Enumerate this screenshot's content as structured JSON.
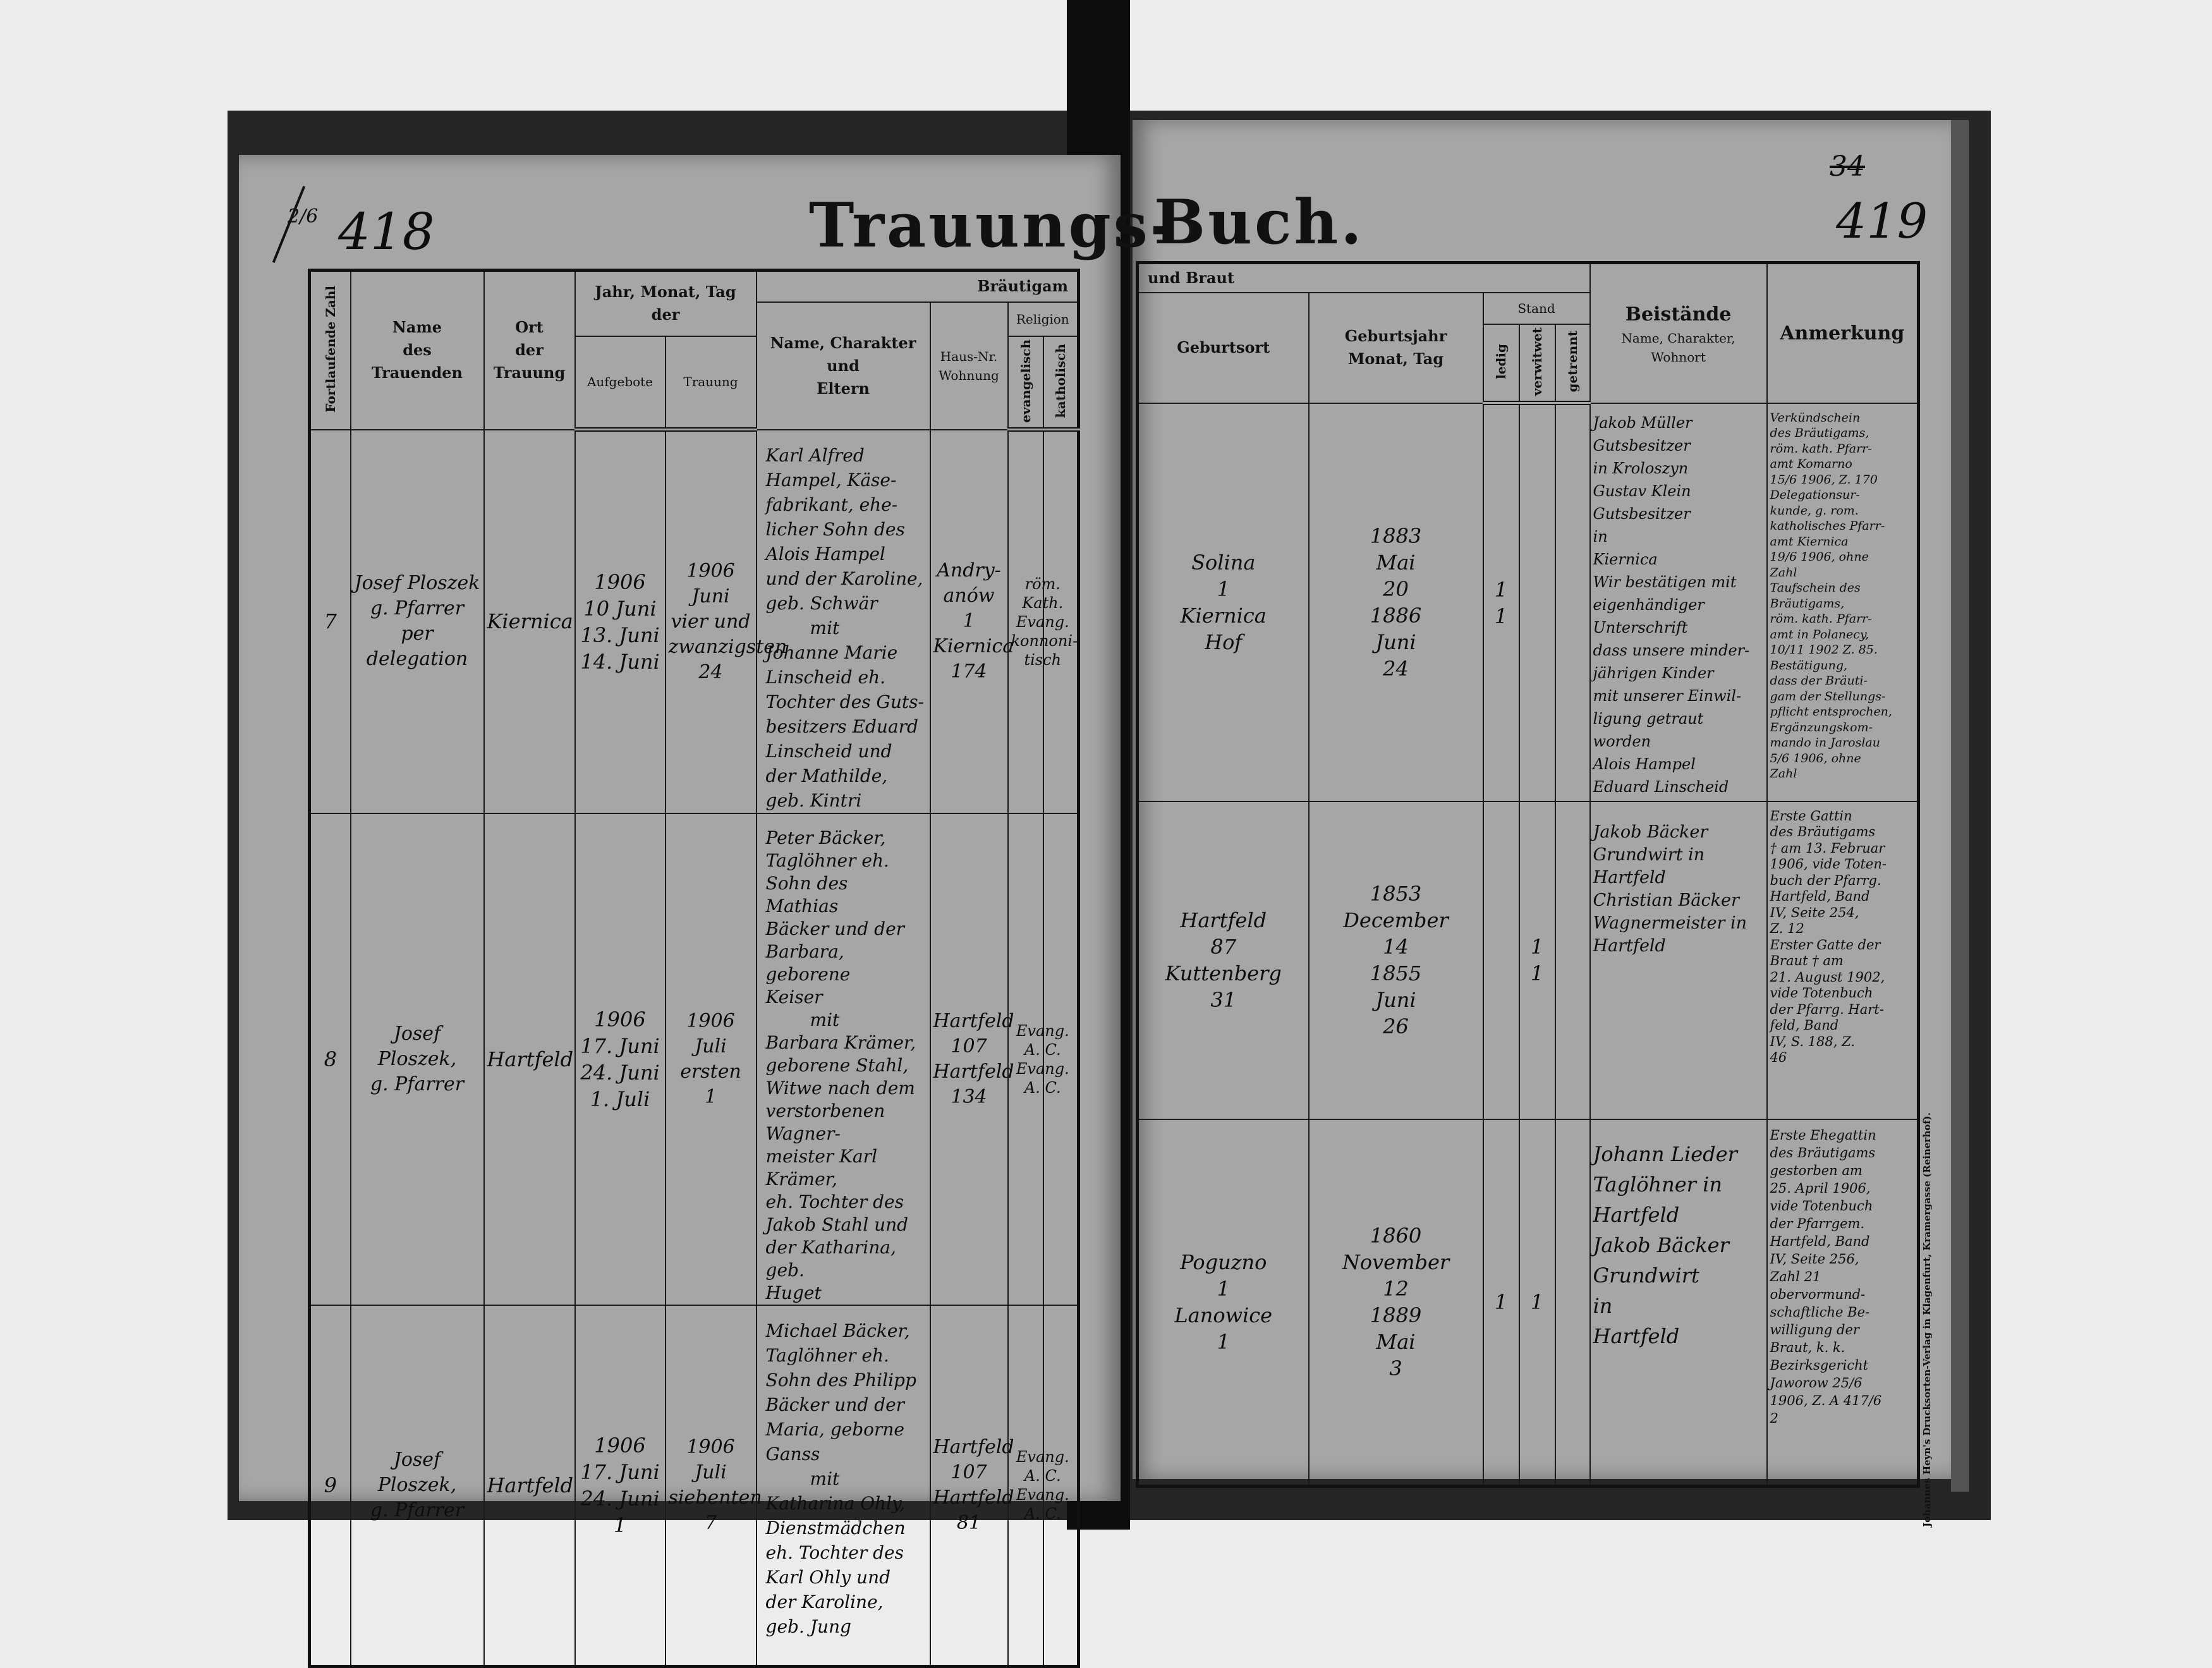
{
  "header": {
    "marginal_left": "2/6",
    "page_left_number": "418",
    "title_left": "Trauungs-",
    "title_right": "Buch.",
    "crossed_number": "34",
    "page_right_number": "419"
  },
  "left_columns": {
    "number": "Fortlaufende Zahl",
    "officiant": "Name\ndes\nTrauenden",
    "place": "Ort\nder\nTrauung",
    "date_group": "Jahr, Monat, Tag\nder",
    "banns": "Aufgebote",
    "wedding": "Trauung",
    "groom_group": "Bräutigam",
    "name_parents": "Name, Charakter\nund\nEltern",
    "house": "Haus-Nr.\nWohnung",
    "religion": "Religion",
    "evangelical": "evangelisch",
    "catholic": "katholisch"
  },
  "right_columns": {
    "bride_group": "und Braut",
    "birthplace": "Geburtsort",
    "birthdate": "Geburtsjahr\nMonat, Tag",
    "status": "Stand",
    "single": "ledig",
    "widowed": "verwitwet",
    "divorced": "getrennt",
    "witnesses": "Beistände",
    "witnesses_sub": "Name, Charakter, Wohnort",
    "remarks": "Anmerkung"
  },
  "entries": [
    {
      "number": "7",
      "officiant": "Josef Ploszek\ng. Pfarrer\nper delegation",
      "place": "Kiernica",
      "banns": "1906\n10 Juni\n13. Juni\n14. Juni",
      "wedding": "1906\nJuni\nvier und\nzwanzigsten\n24",
      "groom": "Karl Alfred\nHampel, Käse-\nfabrikant, ehe-\nlicher Sohn des\nAlois Hampel\nund der Karoline,\ngeb. Schwär",
      "with": "mit",
      "bride": "Johanne Marie\nLinscheid eh.\nTochter des Guts-\nbesitzers Eduard\nLinscheid und\nder Mathilde,\ngeb. Kintri",
      "groom_house": "Andry-\nanów\n1",
      "bride_house": "Kiernica\n174",
      "groom_religion": "röm.\nKath.",
      "bride_religion": "Evang.\nkonnoni-\ntisch",
      "groom_birthplace": "Solina\n1",
      "groom_birthdate": "1883\nMai\n20",
      "groom_stand": {
        "ledig": "1",
        "verwitwet": "",
        "getrennt": ""
      },
      "bride_birthplace": "Kiernica\nHof",
      "bride_birthdate": "1886\nJuni\n24",
      "bride_stand": {
        "ledig": "1",
        "verwitwet": "",
        "getrennt": ""
      },
      "witnesses": "Jakob Müller\nGutsbesitzer\nin Kroloszyn\nGustav Klein\nGutsbesitzer\nin\nKiernica\nWir bestätigen mit\neigenhändiger Unterschrift\ndass unsere minder-\njährigen Kinder\nmit unserer Einwil-\nligung getraut worden\nAlois Hampel\nEduard Linscheid",
      "remarks": "Verkündschein\ndes Bräutigams,\nröm. kath. Pfarr-\namt Komarno\n15/6 1906, Z. 170\nDelegationsur-\nkunde, g. rom.\nkatholisches Pfarr-\namt Kiernica\n19/6 1906, ohne\nZahl\nTaufschein des\nBräutigams,\nröm. kath. Pfarr-\namt in Polanecy,\n10/11 1902 Z. 85.\nBestätigung,\ndass der Bräuti-\ngam der Stellungs-\npflicht entsprochen,\nErgänzungskom-\nmando in Jaroslau\n5/6 1906, ohne\nZahl"
    },
    {
      "number": "8",
      "officiant": "Josef Ploszek,\ng. Pfarrer",
      "place": "Hartfeld",
      "banns": "1906\n17. Juni\n24. Juni\n1. Juli",
      "wedding": "1906\nJuli\nersten\n1",
      "groom": "Peter Bäcker,\nTaglöhner eh.\nSohn des Mathias\nBäcker und der\nBarbara, geborene\nKeiser",
      "with": "mit",
      "bride": "Barbara Krämer,\ngeborene Stahl,\nWitwe nach dem\nverstorbenen Wagner-\nmeister Karl Krämer,\neh. Tochter des\nJakob Stahl und\nder Katharina, geb.\nHuget",
      "groom_house": "Hartfeld\n107",
      "bride_house": "Hartfeld\n134",
      "groom_religion": "Evang.\nA. C.",
      "bride_religion": "Evang.\nA. C.",
      "groom_birthplace": "Hartfeld\n87",
      "groom_birthdate": "1853\nDecember\n14",
      "groom_stand": {
        "ledig": "",
        "verwitwet": "1",
        "getrennt": ""
      },
      "bride_birthplace": "Kuttenberg\n31",
      "bride_birthdate": "1855\nJuni\n26",
      "bride_stand": {
        "ledig": "",
        "verwitwet": "1",
        "getrennt": ""
      },
      "witnesses": "Jakob Bäcker\nGrundwirt in\nHartfeld\nChristian Bäcker\nWagnermeister in\nHartfeld",
      "remarks": "Erste Gattin\ndes Bräutigams\n† am 13. Februar\n1906, vide Toten-\nbuch der Pfarrg.\nHartfeld, Band\nIV, Seite 254,\nZ. 12\nErster Gatte der\nBraut † am\n21. August 1902,\nvide Totenbuch\nder Pfarrg. Hart-\nfeld, Band\nIV, S. 188, Z.\n46"
    },
    {
      "number": "9",
      "officiant": "Josef Ploszek,\ng. Pfarrer",
      "place": "Hartfeld",
      "banns": "1906\n17. Juni\n24. Juni\n1",
      "wedding": "1906\nJuli\nsiebenten\n7",
      "groom": "Michael Bäcker,\nTaglöhner eh.\nSohn des Philipp\nBäcker und der\nMaria, geborne\nGanss",
      "with": "mit",
      "bride": "Katharina Ohly,\nDienstmädchen\neh. Tochter des\nKarl Ohly und\nder Karoline,\ngeb. Jung",
      "groom_house": "Hartfeld\n107",
      "bride_house": "Hartfeld\n81",
      "groom_religion": "Evang.\nA. C.",
      "bride_religion": "Evang.\nA. C.",
      "groom_birthplace": "Poguzno\n1",
      "groom_birthdate": "1860\nNovember\n12",
      "groom_stand": {
        "ledig": "",
        "verwitwet": "1",
        "getrennt": ""
      },
      "bride_birthplace": "Lanowice\n1",
      "bride_birthdate": "1889\nMai\n3",
      "bride_stand": {
        "ledig": "1",
        "verwitwet": "",
        "getrennt": ""
      },
      "witnesses": "Johann Lieder\nTaglöhner in\nHartfeld\nJakob Bäcker\nGrundwirt\nin\nHartfeld",
      "remarks": "Erste Ehegattin\ndes Bräutigams\ngestorben am\n25. April 1906,\nvide Totenbuch\nder Pfarrgem.\nHartfeld, Band\nIV, Seite 256,\nZahl 21\nobervormund-\nschaftliche Be-\nwilligung der\nBraut, k. k.\nBezirksgericht\nJaworow 25/6\n1906, Z. A 417/6\n2"
    }
  ],
  "imprint": "Johannes Heyn's Drucksorten-Verlag in Klagenfurt, Kramergasse (Reinerhof)."
}
